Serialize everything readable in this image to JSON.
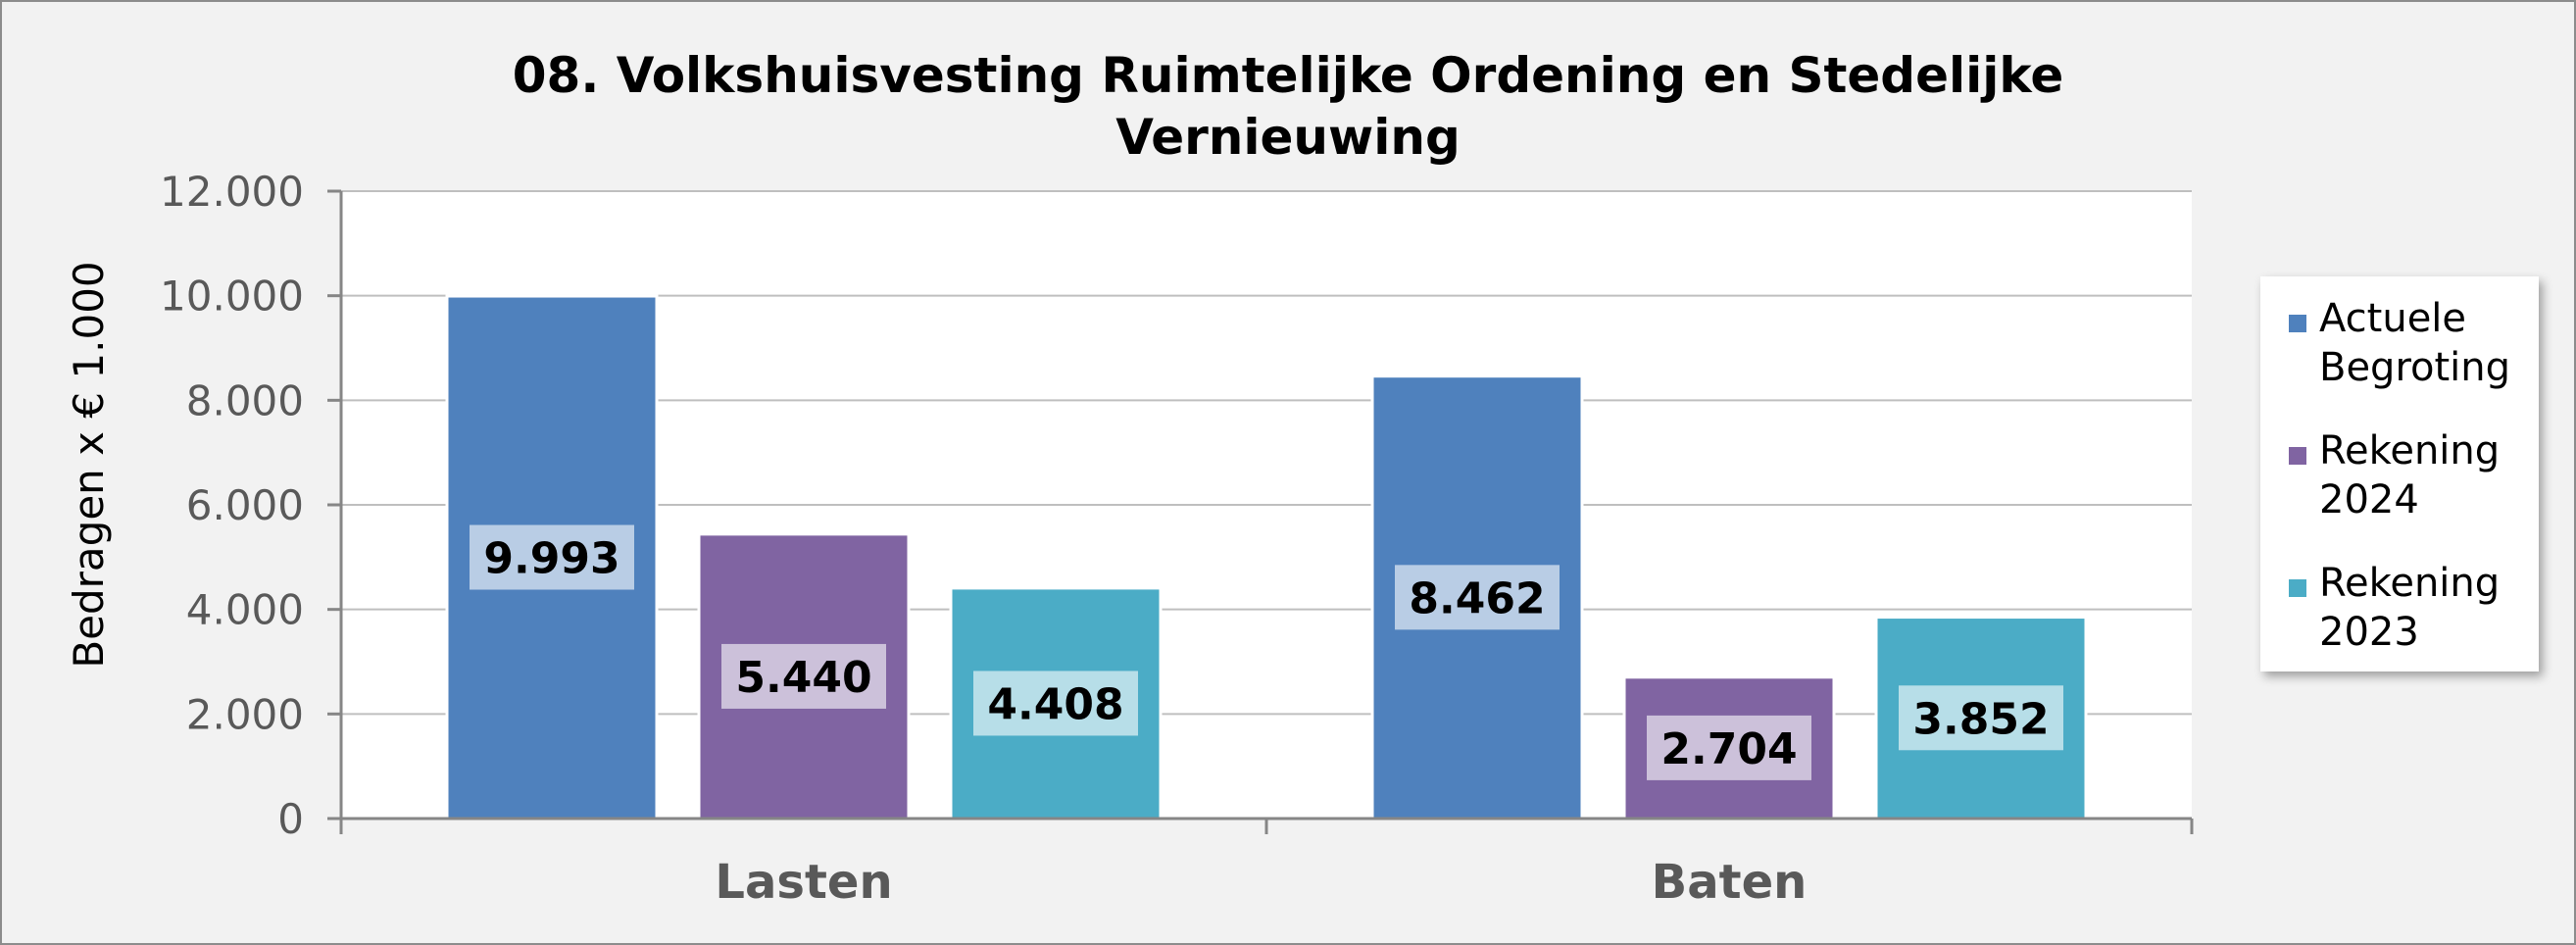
{
  "chart_data": {
    "type": "bar",
    "title_line1": "08. Volkshuisvesting Ruimtelijke Ordening en Stedelijke",
    "title_line2": "Vernieuwing",
    "xlabel": "",
    "ylabel": "Bedragen x € 1.000",
    "ylim": [
      0,
      12000
    ],
    "yticks": [
      0,
      2000,
      4000,
      6000,
      8000,
      10000,
      12000
    ],
    "ytick_labels": [
      "0",
      "2.000",
      "4.000",
      "6.000",
      "8.000",
      "10.000",
      "12.000"
    ],
    "grid": true,
    "legend_position": "right",
    "categories": [
      "Lasten",
      "Baten"
    ],
    "series": [
      {
        "name": "Actuele Begroting",
        "legend_lines": [
          "Actuele",
          "Begroting"
        ],
        "color": "#4f81bd",
        "label_bg": "#b9cde5",
        "values": [
          9993,
          8462
        ],
        "labels": [
          "9.993",
          "8.462"
        ]
      },
      {
        "name": "Rekening 2024",
        "legend_lines": [
          "Rekening",
          "2024"
        ],
        "color": "#8064a2",
        "label_bg": "#ccc1da",
        "values": [
          5440,
          2704
        ],
        "labels": [
          "5.440",
          "2.704"
        ]
      },
      {
        "name": "Rekening 2023",
        "legend_lines": [
          "Rekening",
          "2023"
        ],
        "color": "#4bacc6",
        "label_bg": "#b7dee8",
        "values": [
          4408,
          3852
        ],
        "labels": [
          "4.408",
          "3.852"
        ]
      }
    ]
  }
}
